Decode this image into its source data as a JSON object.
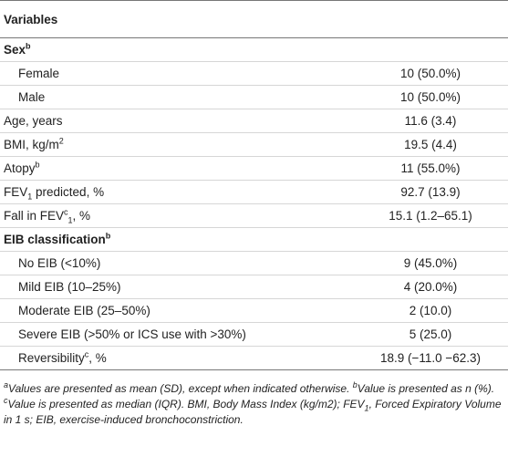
{
  "table": {
    "header": "Variables",
    "rows": [
      {
        "label": [
          {
            "text": "Sex"
          },
          {
            "sup": "b"
          }
        ],
        "bold": true
      },
      {
        "label": [
          {
            "text": "Female"
          }
        ],
        "indent": true,
        "value": "10 (50.0%)"
      },
      {
        "label": [
          {
            "text": "Male"
          }
        ],
        "indent": true,
        "value": "10 (50.0%)"
      },
      {
        "label": [
          {
            "text": "Age, years"
          }
        ],
        "value": "11.6 (3.4)"
      },
      {
        "label": [
          {
            "text": "BMI, kg/m"
          },
          {
            "sup": "2"
          }
        ],
        "value": "19.5 (4.4)"
      },
      {
        "label": [
          {
            "text": "Atopy"
          },
          {
            "sup": "b"
          }
        ],
        "value": "11 (55.0%)"
      },
      {
        "label": [
          {
            "text": "FEV"
          },
          {
            "sub": "1"
          },
          {
            "text": " predicted, %"
          }
        ],
        "value": "92.7 (13.9)"
      },
      {
        "label": [
          {
            "text": "Fall in FEV"
          },
          {
            "sup": "c"
          },
          {
            "sub": "1"
          },
          {
            "text": ", %"
          }
        ],
        "value": "15.1 (1.2–65.1)"
      },
      {
        "label": [
          {
            "text": "EIB classification"
          },
          {
            "sup": "b"
          }
        ],
        "bold": true
      },
      {
        "label": [
          {
            "text": "No EIB (<10%)"
          }
        ],
        "indent": true,
        "value": "9 (45.0%)"
      },
      {
        "label": [
          {
            "text": "Mild EIB (10–25%)"
          }
        ],
        "indent": true,
        "value": "4 (20.0%)"
      },
      {
        "label": [
          {
            "text": "Moderate EIB (25–50%)"
          }
        ],
        "indent": true,
        "value": "2 (10.0)"
      },
      {
        "label": [
          {
            "text": "Severe EIB (>50% or ICS use with >30%)"
          }
        ],
        "indent": true,
        "value": "5 (25.0)"
      },
      {
        "label": [
          {
            "text": "Reversibility"
          },
          {
            "sup": "c"
          },
          {
            "text": ", %"
          }
        ],
        "indent": true,
        "value": "18.9 (−11.0 −62.3)"
      }
    ]
  },
  "footnote": [
    {
      "sup": "a"
    },
    {
      "text": "Values are presented as mean (SD), except when indicated otherwise. "
    },
    {
      "sup": "b"
    },
    {
      "text": "Value is presented as n (%). "
    },
    {
      "sup": "c"
    },
    {
      "text": "Value is presented as median (IQR). BMI, Body Mass Index (kg/m2); FEV"
    },
    {
      "sub": "1"
    },
    {
      "text": ", Forced Expiratory Volume in 1 s; EIB, exercise-induced bronchoconstriction."
    }
  ]
}
